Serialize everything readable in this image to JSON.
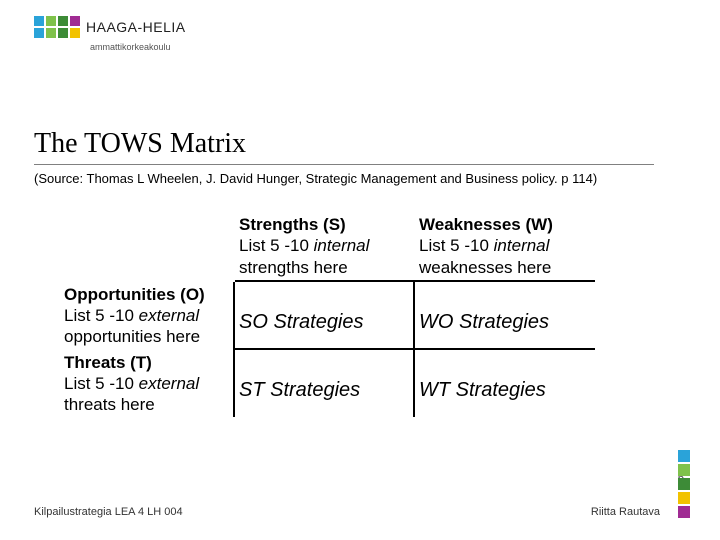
{
  "logo": {
    "name": "HAAGA-HELIA",
    "subtitle": "ammattikorkeakoulu",
    "colors": [
      "#2aa3d9",
      "#7fc24b",
      "#3d8b37",
      "#a02b93",
      "#2aa3d9",
      "#7fc24b",
      "#3d8b37",
      "#f2c200"
    ]
  },
  "title": "The TOWS Matrix",
  "source": "(Source: Thomas L Wheelen, J. David Hunger, Strategic Management and Business policy. p 114)",
  "matrix": {
    "row0": {
      "c1_head": "Strengths (S)",
      "c1_sub_pre": "List 5 -10 ",
      "c1_sub_ital": "internal",
      "c1_sub_post": " strengths here",
      "c2_head": "Weaknesses (W)",
      "c2_sub_pre": "List 5 -10 ",
      "c2_sub_ital": "internal",
      "c2_sub_post": " weaknesses here"
    },
    "row1": {
      "c0_head": "Opportunities (O)",
      "c0_sub_pre": "List 5 -10 ",
      "c0_sub_ital": "external",
      "c0_sub_post": " opportunities here",
      "c1": "SO Strategies",
      "c2": "WO Strategies"
    },
    "row2": {
      "c0_head": "Threats (T)",
      "c0_sub_pre": "List 5 -10 ",
      "c0_sub_ital": "external",
      "c0_sub_post": " threats here",
      "c1": "ST Strategies",
      "c2": "WT Strategies"
    }
  },
  "footer": {
    "page": "6",
    "left": "Kilpailustrategia LEA 4 LH 004",
    "right": "Riitta Rautava"
  },
  "side_colors": [
    "#2aa3d9",
    "#7fc24b",
    "#3d8b37",
    "#f2c200",
    "#a02b93"
  ]
}
